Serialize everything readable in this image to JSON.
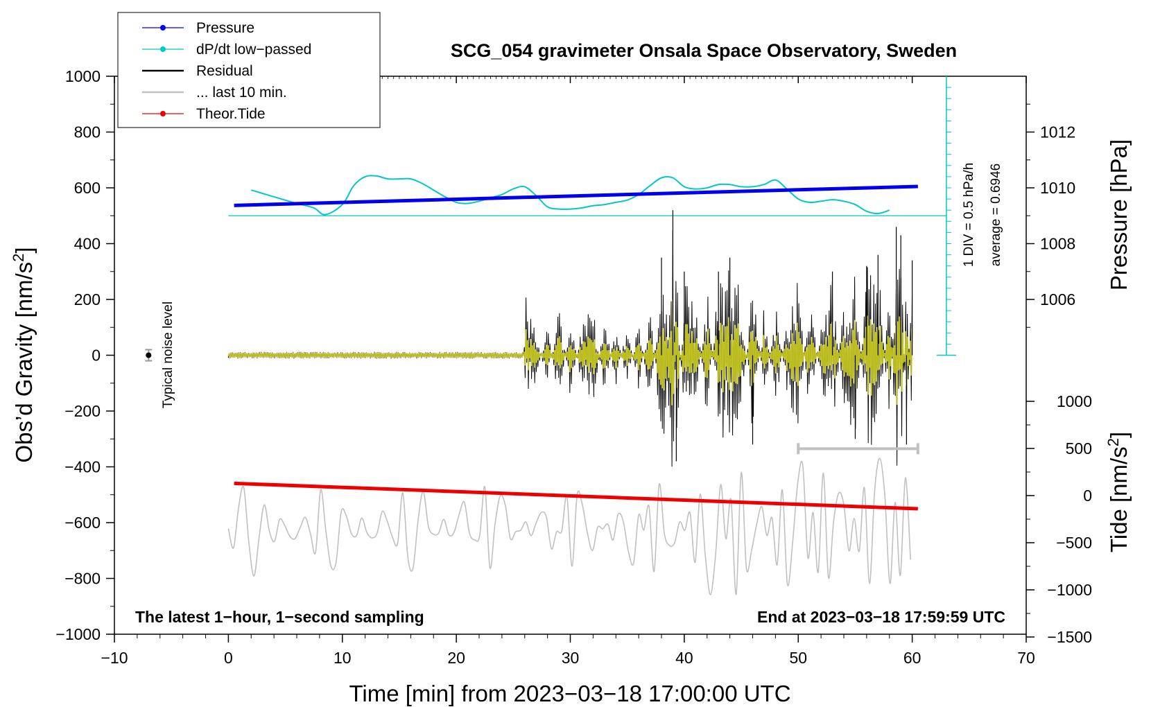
{
  "chart_data": {
    "type": "line",
    "title": "SCG_054 gravimeter Onsala Space Observatory, Sweden",
    "xlabel": "Time [min] from 2023−03−18 17:00:00 UTC",
    "ylabel": "Obs’d Gravity [nm/s2]",
    "ylabel_main": "Obs’d Gravity [nm/s",
    "ylabel_sup": "2",
    "ylabel_end": "]",
    "y2label": "Pressure [hPa]",
    "y3label_main": "Tide [nm/s",
    "y3label_sup": "2",
    "y3label_end": "]",
    "xlim": [
      -10,
      70
    ],
    "ylim": [
      -1000,
      1000
    ],
    "x_ticks": [
      "−10",
      "0",
      "10",
      "20",
      "30",
      "40",
      "50",
      "60",
      "70"
    ],
    "y_ticks": [
      "1000",
      "800",
      "600",
      "400",
      "200",
      "0",
      "−200",
      "−400",
      "−600",
      "−800",
      "−1000"
    ],
    "pressure_axis": {
      "ticks": [
        "1012",
        "1010",
        "1008",
        "1006"
      ],
      "values": [
        1012,
        1010,
        1008,
        1006
      ]
    },
    "tide_axis": {
      "ticks": [
        "1000",
        "500",
        "0",
        "−500",
        "−1000",
        "−1500"
      ],
      "values": [
        1000,
        500,
        0,
        -500,
        -1000,
        -1500
      ]
    },
    "legend": [
      {
        "label": "Pressure",
        "color": "#0000ee",
        "marker": true
      },
      {
        "label": "dP/dt low−passed",
        "color": "#00c8c8",
        "marker": true
      },
      {
        "label": "Residual",
        "color": "#000000",
        "marker": false
      },
      {
        "label": "... last 10 min.",
        "color": "#c0c0c0",
        "marker": false
      },
      {
        "label": "Theor.Tide",
        "color": "#ee0000",
        "marker": true
      }
    ],
    "annotations": {
      "latest": "The latest 1−hour, 1−second sampling",
      "end": "End at 2023−03−18 17:59:59 UTC",
      "noise": "Typical noise level",
      "div": "1 DIV = 0.5 hPa/h",
      "average": "average = 0.6946"
    },
    "series": [
      {
        "name": "Pressure",
        "unit": "hPa",
        "color": "#0000ee",
        "x": [
          0.5,
          60.5
        ],
        "values": [
          1009.37,
          1010.05
        ]
      },
      {
        "name": "dP/dt low-passed",
        "unit": "hPa/h",
        "color": "#00c8c8",
        "x": [
          2,
          4,
          6,
          7.5,
          8.5,
          10,
          11,
          12,
          13,
          14,
          15,
          16,
          17,
          18,
          19,
          20,
          21,
          22,
          23,
          24,
          25,
          26,
          27,
          28,
          29,
          30,
          31,
          32,
          33,
          34,
          35,
          36,
          37,
          38,
          39,
          40,
          41,
          42,
          43,
          44,
          45,
          46,
          47,
          48,
          49,
          50,
          51,
          52,
          53,
          54,
          55,
          56,
          57,
          58
        ],
        "values": [
          1.15,
          0.85,
          0.55,
          0.35,
          0.05,
          0.5,
          1.35,
          1.75,
          1.78,
          1.65,
          1.65,
          1.65,
          1.45,
          1.15,
          0.85,
          0.6,
          0.55,
          0.65,
          0.8,
          0.95,
          1.2,
          1.3,
          0.9,
          0.4,
          0.3,
          0.3,
          0.35,
          0.45,
          0.5,
          0.6,
          0.7,
          0.95,
          1.35,
          1.7,
          1.7,
          1.3,
          1.2,
          1.25,
          1.4,
          1.4,
          1.3,
          1.3,
          1.4,
          1.6,
          1.2,
          0.75,
          0.6,
          0.65,
          0.72,
          0.65,
          0.5,
          0.2,
          0.1,
          0.25
        ]
      },
      {
        "name": "Residual",
        "unit": "nm/s2",
        "color": "#000000",
        "x": [
          0,
          10,
          20,
          25.9,
          26.1,
          26.3,
          26.5,
          27,
          28,
          29,
          30,
          31,
          32,
          33,
          34,
          35,
          36,
          37,
          38,
          38.7,
          39,
          39.3,
          40,
          41,
          42,
          43,
          44,
          45,
          46,
          47,
          48,
          49,
          50,
          51,
          52,
          53,
          54,
          55,
          56,
          57,
          58,
          58.6,
          59,
          59.5,
          60
        ],
        "values": [
          0,
          3,
          -3,
          0,
          235,
          -255,
          160,
          90,
          -110,
          180,
          -160,
          120,
          170,
          -140,
          110,
          -120,
          130,
          -180,
          350,
          170,
          520,
          -380,
          300,
          220,
          -260,
          300,
          350,
          250,
          -320,
          190,
          -200,
          140,
          280,
          -240,
          140,
          300,
          -200,
          -300,
          320,
          360,
          -280,
          460,
          430,
          -320,
          340
        ]
      },
      {
        "name": "Theor.Tide",
        "unit": "nm/s2",
        "color": "#ee0000",
        "x": [
          0.5,
          60.5
        ],
        "values": [
          130,
          -140
        ]
      }
    ],
    "last_10_min_bar": {
      "x_start": 50,
      "x_end": 60.5,
      "y": -335
    }
  }
}
